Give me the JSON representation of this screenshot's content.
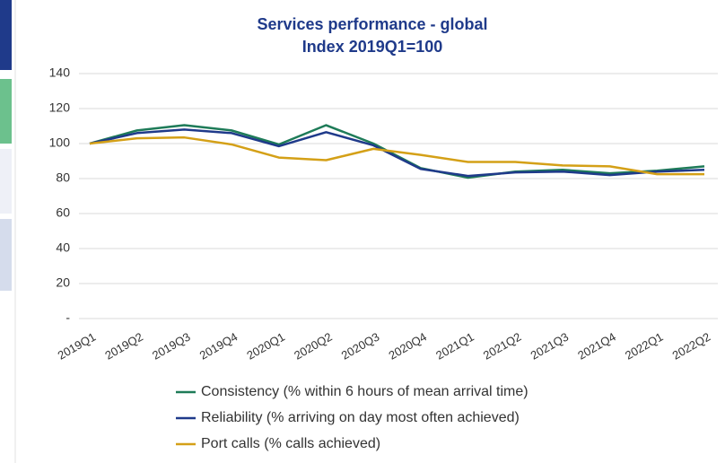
{
  "chart_data": {
    "type": "line",
    "title": "Services performance - global",
    "subtitle": "Index 2019Q1=100",
    "categories": [
      "2019Q1",
      "2019Q2",
      "2019Q3",
      "2019Q4",
      "2020Q1",
      "2020Q2",
      "2020Q3",
      "2020Q4",
      "2021Q1",
      "2021Q2",
      "2021Q3",
      "2021Q4",
      "2022Q1",
      "2022Q2"
    ],
    "series": [
      {
        "name": "Consistency (% within 6 hours of mean arrival time)",
        "color": "#1e7b58",
        "values": [
          100,
          107.5,
          110.5,
          107.5,
          99.5,
          110.5,
          100,
          86,
          80.5,
          84,
          85,
          83,
          84.5,
          87
        ]
      },
      {
        "name": "Reliability (% arriving on day most often achieved)",
        "color": "#1f3a8a",
        "values": [
          100,
          106,
          108,
          106,
          98.5,
          106.5,
          99,
          85.5,
          81.5,
          83.5,
          84,
          82,
          84,
          85
        ]
      },
      {
        "name": "Port calls (% calls achieved)",
        "color": "#d4a017",
        "values": [
          100,
          103,
          103.5,
          99.5,
          92,
          90.5,
          97,
          93.5,
          89.5,
          89.5,
          87.5,
          87,
          82.5,
          82.5
        ]
      }
    ],
    "ylim": [
      0,
      140
    ],
    "yticks": [
      {
        "value": 0,
        "label": "-"
      },
      20,
      40,
      60,
      80,
      100,
      120,
      140
    ],
    "grid": true,
    "legend": "bottom"
  }
}
